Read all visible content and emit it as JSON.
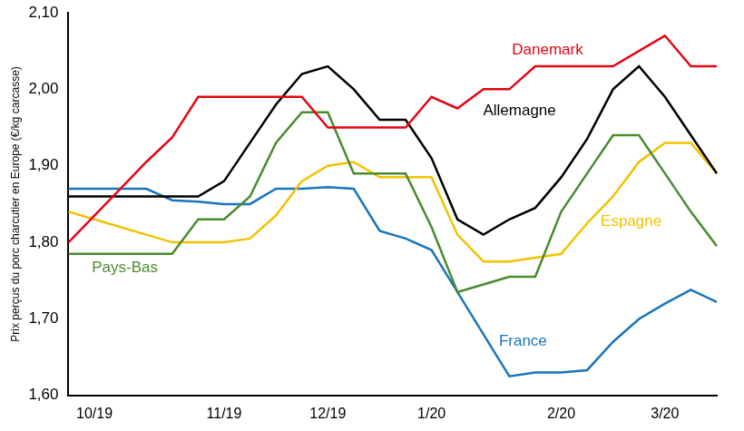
{
  "chart_data": {
    "type": "line",
    "y_label": "Prix perçus du porc charcutier en Europe (€/kg carcasse)",
    "categories": [
      null,
      "10/19",
      null,
      null,
      null,
      null,
      "11/19",
      null,
      null,
      null,
      "12/19",
      null,
      null,
      null,
      "1/20",
      null,
      null,
      null,
      null,
      "2/20",
      null,
      null,
      null,
      "3/20",
      null,
      null
    ],
    "series": [
      {
        "name": "Danemark",
        "color": "#e30613",
        "values": [
          1.8,
          1.835,
          1.87,
          1.905,
          1.937,
          1.99,
          1.99,
          1.99,
          1.99,
          1.99,
          1.95,
          1.95,
          1.95,
          1.95,
          1.99,
          1.975,
          2.0,
          2.0,
          2.03,
          2.03,
          2.03,
          2.03,
          2.05,
          2.07,
          2.03,
          2.03
        ]
      },
      {
        "name": "Allemagne",
        "color": "#000000",
        "values": [
          1.86,
          1.86,
          1.86,
          1.86,
          1.86,
          1.86,
          1.88,
          1.93,
          1.98,
          2.02,
          2.03,
          2.0,
          1.96,
          1.96,
          1.91,
          1.83,
          1.81,
          1.83,
          1.845,
          1.885,
          1.935,
          2.0,
          2.03,
          1.99,
          1.94,
          1.89
        ]
      },
      {
        "name": "Pays-Bas",
        "color": "#4a8b2c",
        "values": [
          1.785,
          1.785,
          1.785,
          1.785,
          1.785,
          1.83,
          1.83,
          1.86,
          1.93,
          1.97,
          1.97,
          1.89,
          1.89,
          1.89,
          1.82,
          1.735,
          1.745,
          1.755,
          1.755,
          1.84,
          1.89,
          1.94,
          1.94,
          1.89,
          1.84,
          1.795
        ]
      },
      {
        "name": "Espagne",
        "color": "#f2c200",
        "values": [
          1.84,
          1.83,
          1.82,
          1.81,
          1.8,
          1.8,
          1.8,
          1.805,
          1.835,
          1.88,
          1.9,
          1.905,
          1.885,
          1.885,
          1.885,
          1.81,
          1.775,
          1.775,
          1.78,
          1.785,
          1.825,
          1.86,
          1.905,
          1.93,
          1.93,
          1.89
        ]
      },
      {
        "name": "France",
        "color": "#1a75bc",
        "values": [
          1.87,
          1.87,
          1.87,
          1.87,
          1.855,
          1.853,
          1.85,
          1.85,
          1.87,
          1.87,
          1.872,
          1.87,
          1.815,
          1.805,
          1.79,
          1.735,
          1.68,
          1.625,
          1.63,
          1.63,
          1.633,
          1.67,
          1.7,
          1.72,
          1.738,
          1.722
        ]
      }
    ],
    "ylim": [
      1.6,
      2.1
    ],
    "yticks": [
      {
        "value": 1.6,
        "label": "1,60"
      },
      {
        "value": 1.7,
        "label": "1,70"
      },
      {
        "value": 1.8,
        "label": "1,80"
      },
      {
        "value": 1.9,
        "label": "1,90"
      },
      {
        "value": 2.0,
        "label": "2,00"
      },
      {
        "value": 2.1,
        "label": "2,10"
      }
    ],
    "grid": false
  }
}
